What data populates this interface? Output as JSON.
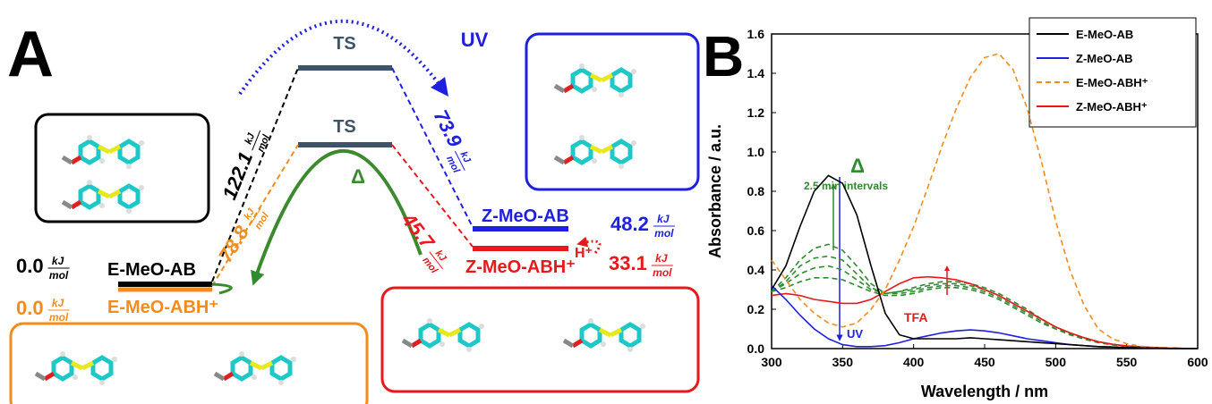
{
  "panel_a": {
    "label": "A",
    "unit": {
      "num": "kJ",
      "den": "mol"
    },
    "ts": [
      "TS",
      "TS"
    ],
    "states": [
      {
        "name": "E-MeO-AB",
        "energy": "0.0"
      },
      {
        "name": "E-MeO-ABH⁺",
        "energy": "0.0"
      },
      {
        "name": "Z-MeO-AB",
        "energy": "48.2"
      },
      {
        "name": "Z-MeO-ABH⁺",
        "energy": "33.1"
      }
    ],
    "barriers": [
      "122.1",
      "78.8",
      "73.9",
      "45.7"
    ],
    "uv": "UV",
    "heat": "Δ",
    "proton": "H⁺"
  },
  "chart_data": {
    "type": "line",
    "panel_label": "B",
    "xlabel": "Wavelength / nm",
    "ylabel": "Absorbance / a.u.",
    "x": [
      300,
      310,
      320,
      330,
      340,
      350,
      360,
      370,
      380,
      390,
      400,
      410,
      420,
      430,
      440,
      450,
      460,
      470,
      480,
      490,
      500,
      510,
      520,
      530,
      540,
      550,
      560,
      570,
      580,
      590,
      600
    ],
    "xlim": [
      300,
      600
    ],
    "xticks": [
      300,
      350,
      400,
      450,
      500,
      550,
      600
    ],
    "ylim": [
      0,
      1.6
    ],
    "yticks": [
      {
        "value": 0,
        "label": "0.0"
      },
      0.2,
      0.4,
      0.6,
      0.8,
      {
        "value": 1,
        "label": "1.0"
      },
      1.2,
      1.4,
      1.6
    ],
    "legend": "upper right",
    "series": [
      {
        "name": "E-MeO-AB",
        "color": "#000000",
        "dashed": false,
        "values": [
          0.3,
          0.42,
          0.62,
          0.8,
          0.88,
          0.84,
          0.68,
          0.42,
          0.18,
          0.07,
          0.05,
          0.05,
          0.05,
          0.05,
          0.055,
          0.05,
          0.045,
          0.04,
          0.035,
          0.03,
          0.025,
          0.02,
          0.015,
          0.01,
          0.008,
          0.005,
          0.003,
          0.002,
          0.001,
          0,
          0
        ]
      },
      {
        "name": "Z-MeO-AB",
        "color": "#1f1fe0",
        "dashed": false,
        "values": [
          0.32,
          0.25,
          0.17,
          0.1,
          0.05,
          0.02,
          0.01,
          0.01,
          0.015,
          0.03,
          0.05,
          0.065,
          0.08,
          0.09,
          0.095,
          0.09,
          0.08,
          0.065,
          0.05,
          0.04,
          0.03,
          0.02,
          0.015,
          0.01,
          0.007,
          0.005,
          0.003,
          0.002,
          0.001,
          0,
          0
        ]
      },
      {
        "name": "E-MeO-ABH⁺",
        "color": "#f28c1c",
        "dashed": true,
        "values": [
          0.45,
          0.35,
          0.25,
          0.18,
          0.13,
          0.11,
          0.13,
          0.2,
          0.3,
          0.45,
          0.62,
          0.82,
          1.03,
          1.22,
          1.38,
          1.48,
          1.5,
          1.42,
          1.22,
          0.95,
          0.65,
          0.4,
          0.22,
          0.1,
          0.05,
          0.025,
          0.012,
          0.006,
          0.003,
          0.001,
          0
        ]
      },
      {
        "name": "Z-MeO-ABH⁺",
        "color": "#e8191c",
        "dashed": false,
        "values": [
          0.27,
          0.28,
          0.27,
          0.25,
          0.24,
          0.23,
          0.23,
          0.25,
          0.29,
          0.33,
          0.36,
          0.365,
          0.36,
          0.35,
          0.33,
          0.3,
          0.27,
          0.23,
          0.19,
          0.15,
          0.11,
          0.08,
          0.055,
          0.035,
          0.022,
          0.013,
          0.008,
          0.005,
          0.003,
          0.001,
          0
        ]
      },
      {
        "color": "#2e8b2e",
        "dashed": true,
        "values": [
          0.29,
          0.36,
          0.45,
          0.51,
          0.53,
          0.5,
          0.42,
          0.33,
          0.28,
          0.29,
          0.31,
          0.33,
          0.34,
          0.34,
          0.33,
          0.31,
          0.28,
          0.24,
          0.2,
          0.15,
          0.11,
          0.08,
          0.055,
          0.035,
          0.022,
          0.013,
          0.008,
          0.005,
          0.003,
          0.001,
          0
        ]
      },
      {
        "color": "#2e8b2e",
        "dashed": true,
        "values": [
          0.29,
          0.34,
          0.42,
          0.46,
          0.47,
          0.45,
          0.38,
          0.31,
          0.28,
          0.29,
          0.3,
          0.32,
          0.33,
          0.33,
          0.32,
          0.3,
          0.27,
          0.23,
          0.19,
          0.15,
          0.11,
          0.08,
          0.055,
          0.035,
          0.022,
          0.013,
          0.008,
          0.005,
          0.003,
          0.001,
          0
        ]
      },
      {
        "color": "#2e8b2e",
        "dashed": true,
        "values": [
          0.29,
          0.33,
          0.38,
          0.41,
          0.42,
          0.4,
          0.35,
          0.3,
          0.28,
          0.28,
          0.29,
          0.31,
          0.32,
          0.32,
          0.31,
          0.29,
          0.26,
          0.22,
          0.18,
          0.14,
          0.1,
          0.075,
          0.05,
          0.033,
          0.02,
          0.012,
          0.007,
          0.004,
          0.002,
          0.001,
          0
        ]
      },
      {
        "color": "#2e8b2e",
        "dashed": true,
        "values": [
          0.29,
          0.31,
          0.34,
          0.36,
          0.36,
          0.35,
          0.32,
          0.29,
          0.27,
          0.27,
          0.28,
          0.3,
          0.31,
          0.31,
          0.3,
          0.28,
          0.25,
          0.21,
          0.17,
          0.13,
          0.1,
          0.07,
          0.048,
          0.03,
          0.019,
          0.011,
          0.006,
          0.004,
          0.002,
          0.001,
          0
        ]
      }
    ],
    "annotations": {
      "heat": "Δ",
      "interval": "2.5 min intervals",
      "uv": "UV",
      "acid": "TFA"
    }
  }
}
